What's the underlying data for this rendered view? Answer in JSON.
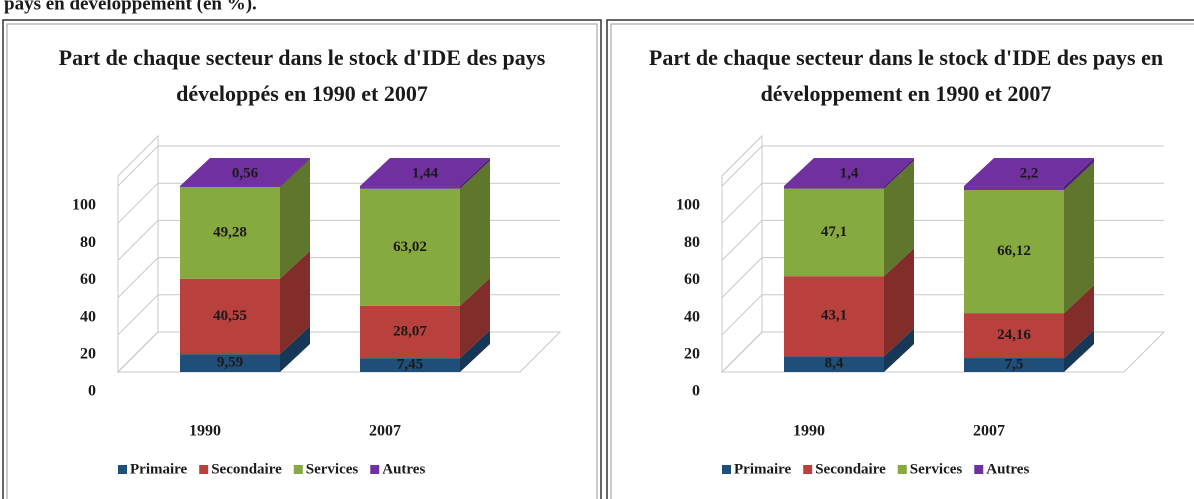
{
  "header": "pays en développement (en %).",
  "chart_data": [
    {
      "type": "bar3d_stacked",
      "title": [
        "Part de chaque secteur dans le stock d'IDE des pays",
        "développés en 1990 et 2007"
      ],
      "categories": [
        "1990",
        "2007"
      ],
      "series": [
        {
          "name": "Primaire",
          "color": "#1f4e79",
          "values": [
            9.59,
            7.45
          ],
          "value_labels": [
            "9,59",
            "7,45"
          ]
        },
        {
          "name": "Secondaire",
          "color": "#b8413e",
          "values": [
            40.55,
            28.07
          ],
          "value_labels": [
            "40,55",
            "28,07"
          ]
        },
        {
          "name": "Services",
          "color": "#86aa3f",
          "values": [
            49.28,
            63.02
          ],
          "value_labels": [
            "49,28",
            "63,02"
          ]
        },
        {
          "name": "Autres",
          "color": "#7030a0",
          "values": [
            0.56,
            1.44
          ],
          "value_labels": [
            "0,56",
            "1,44"
          ]
        }
      ],
      "ylim": [
        0,
        100
      ],
      "yticks": [
        0,
        20,
        40,
        60,
        80,
        100
      ],
      "grid": true,
      "legend": "bottom"
    },
    {
      "type": "bar3d_stacked",
      "title": [
        "Part de chaque secteur dans le stock d'IDE des pays en",
        "développement en 1990 et 2007"
      ],
      "categories": [
        "1990",
        "2007"
      ],
      "series": [
        {
          "name": "Primaire",
          "color": "#1f4e79",
          "values": [
            8.4,
            7.5
          ],
          "value_labels": [
            "8,4",
            "7,5"
          ]
        },
        {
          "name": "Secondaire",
          "color": "#b8413e",
          "values": [
            43.1,
            24.16
          ],
          "value_labels": [
            "43,1",
            "24,16"
          ]
        },
        {
          "name": "Services",
          "color": "#86aa3f",
          "values": [
            47.1,
            66.12
          ],
          "value_labels": [
            "47,1",
            "66,12"
          ]
        },
        {
          "name": "Autres",
          "color": "#7030a0",
          "values": [
            1.4,
            2.2
          ],
          "value_labels": [
            "1,4",
            "2,2"
          ]
        }
      ],
      "ylim": [
        0,
        100
      ],
      "yticks": [
        0,
        20,
        40,
        60,
        80,
        100
      ],
      "grid": true,
      "legend": "bottom"
    }
  ]
}
